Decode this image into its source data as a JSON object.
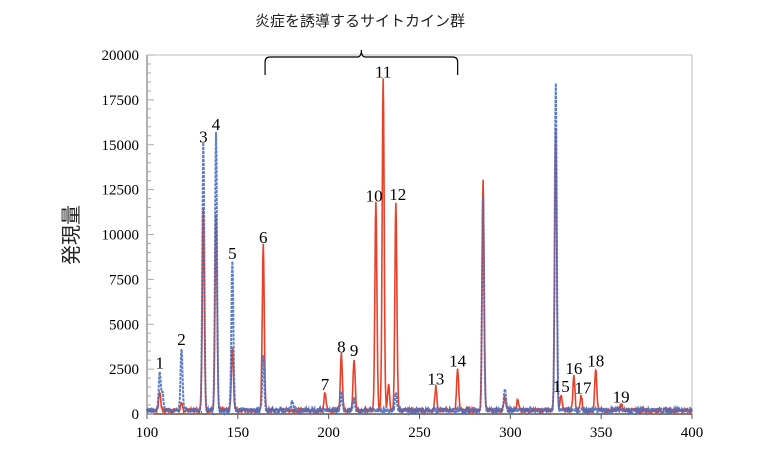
{
  "chart_data": {
    "type": "line",
    "title": "炎症を誘導するサイトカイン群",
    "bracket_range": [
      165,
      271
    ],
    "xlabel": "",
    "ylabel": "発現量",
    "xlim": [
      100,
      400
    ],
    "ylim": [
      0,
      20000
    ],
    "xticks": [
      "100",
      "150",
      "200",
      "250",
      "300",
      "350",
      "400"
    ],
    "yticks": [
      "0",
      "2500",
      "5000",
      "7500",
      "10000",
      "12500",
      "15000",
      "17500",
      "20000"
    ],
    "grid": false,
    "colors": {
      "red": "#e8402a",
      "blue": "#4a6fc0"
    },
    "series": [
      {
        "name": "red",
        "style": "solid",
        "peaks": [
          [
            107,
            1000
          ],
          [
            119,
            300
          ],
          [
            131,
            11300
          ],
          [
            138,
            11000
          ],
          [
            147,
            3500
          ],
          [
            164,
            9200
          ],
          [
            198,
            1000
          ],
          [
            207,
            3100
          ],
          [
            214,
            2900
          ],
          [
            226,
            11500
          ],
          [
            230,
            18400
          ],
          [
            233,
            1500
          ],
          [
            237,
            11600
          ],
          [
            259,
            1300
          ],
          [
            271,
            2300
          ],
          [
            285,
            12900
          ],
          [
            297,
            800
          ],
          [
            304,
            500
          ],
          [
            325,
            15600
          ],
          [
            328,
            900
          ],
          [
            335,
            1900
          ],
          [
            339,
            800
          ],
          [
            347,
            2300
          ],
          [
            361,
            300
          ]
        ]
      },
      {
        "name": "blue",
        "style": "dashed",
        "peaks": [
          [
            107,
            2200
          ],
          [
            108.5,
            1000
          ],
          [
            119,
            3500
          ],
          [
            131,
            14800
          ],
          [
            138,
            15500
          ],
          [
            147,
            8300
          ],
          [
            164,
            3000
          ],
          [
            180,
            500
          ],
          [
            207,
            1000
          ],
          [
            214,
            600
          ],
          [
            237,
            1000
          ],
          [
            285,
            11800
          ],
          [
            297,
            1200
          ],
          [
            325,
            18100
          ]
        ]
      }
    ],
    "peak_labels": [
      {
        "text": "1",
        "x": 107,
        "y": 2200
      },
      {
        "text": "2",
        "x": 119,
        "y": 3500
      },
      {
        "text": "3",
        "x": 131,
        "y": 14800
      },
      {
        "text": "4",
        "x": 138,
        "y": 15500
      },
      {
        "text": "5",
        "x": 147,
        "y": 8300
      },
      {
        "text": "6",
        "x": 164,
        "y": 9200
      },
      {
        "text": "7",
        "x": 198,
        "y": 1000
      },
      {
        "text": "8",
        "x": 207,
        "y": 3100
      },
      {
        "text": "9",
        "x": 214,
        "y": 2900
      },
      {
        "text": "10",
        "x": 225,
        "y": 11500
      },
      {
        "text": "11",
        "x": 230,
        "y": 18400
      },
      {
        "text": "12",
        "x": 238,
        "y": 11600
      },
      {
        "text": "13",
        "x": 259,
        "y": 1300
      },
      {
        "text": "14",
        "x": 271,
        "y": 2300
      },
      {
        "text": "15",
        "x": 328,
        "y": 900
      },
      {
        "text": "16",
        "x": 335,
        "y": 1900
      },
      {
        "text": "17",
        "x": 340,
        "y": 800
      },
      {
        "text": "18",
        "x": 347,
        "y": 2300
      },
      {
        "text": "19",
        "x": 361,
        "y": 300
      }
    ]
  }
}
